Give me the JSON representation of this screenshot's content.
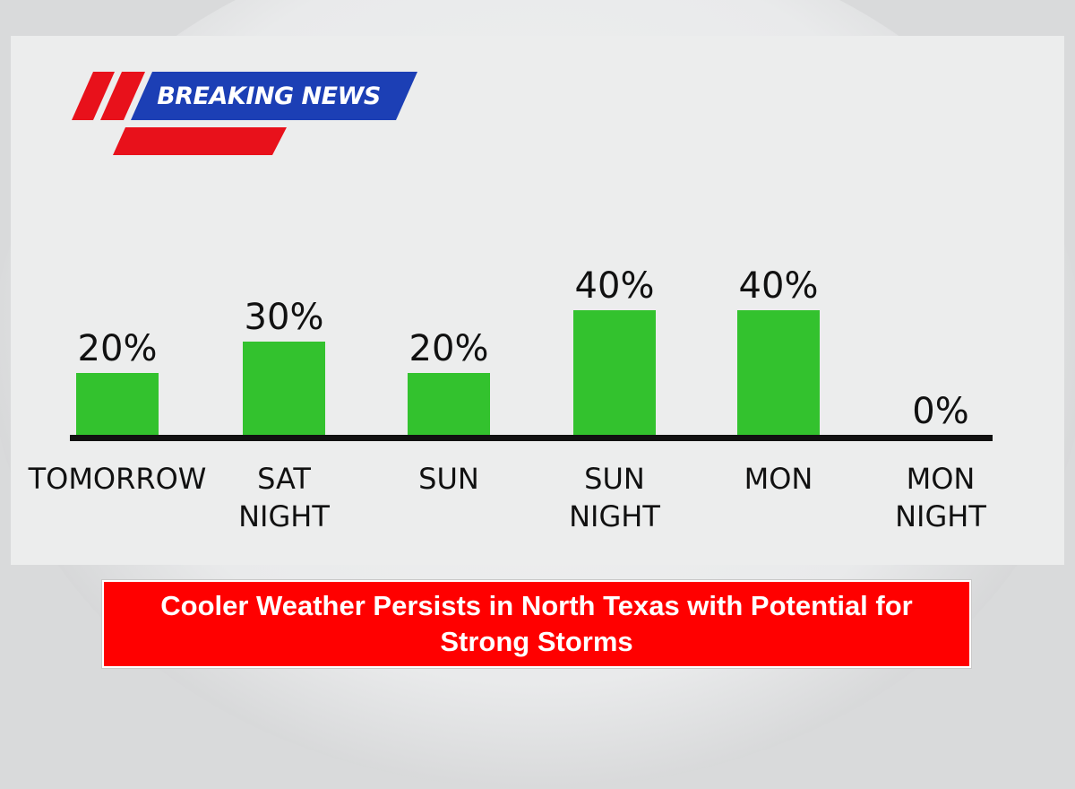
{
  "badge": {
    "label": "BREAKING NEWS",
    "colors": {
      "red": "#e8111b",
      "blue": "#1c3fb5",
      "text": "#ffffff"
    }
  },
  "headline": {
    "text": "Cooler Weather Persists in North Texas with Potential for Strong Storms",
    "background": "#ff0000",
    "color": "#ffffff"
  },
  "chart_data": {
    "type": "bar",
    "title": "",
    "xlabel": "",
    "ylabel": "",
    "ylim": [
      0,
      100
    ],
    "grid": false,
    "legend": "none",
    "bar_color": "#33c22e",
    "categories": [
      [
        "TOMORROW"
      ],
      [
        "SAT",
        "NIGHT"
      ],
      [
        "SUN"
      ],
      [
        "SUN",
        "NIGHT"
      ],
      [
        "MON"
      ],
      [
        "MON",
        "NIGHT"
      ]
    ],
    "values": [
      20,
      30,
      20,
      40,
      40,
      0
    ],
    "value_labels": [
      "20%",
      "30%",
      "20%",
      "40%",
      "40%",
      "0%"
    ]
  }
}
